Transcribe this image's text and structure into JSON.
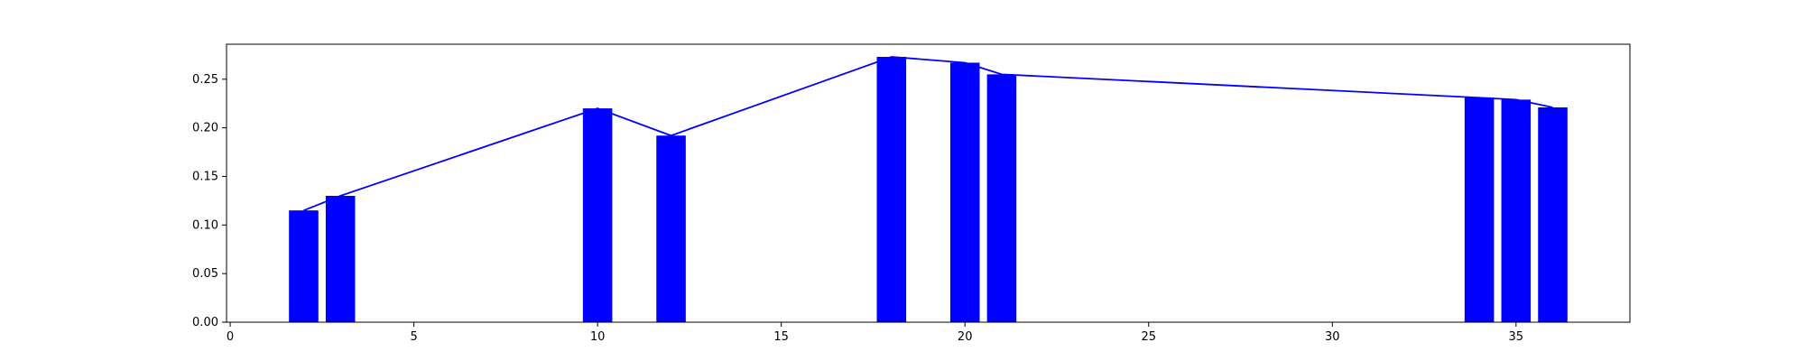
{
  "chart_data": {
    "type": "bar",
    "title": "",
    "xlabel": "",
    "ylabel": "",
    "xlim": [
      -0.1,
      38.1
    ],
    "ylim": [
      0,
      0.286
    ],
    "x_ticks": [
      0,
      5,
      10,
      15,
      20,
      25,
      30,
      35
    ],
    "y_ticks": [
      0.0,
      0.05,
      0.1,
      0.15,
      0.2,
      0.25
    ],
    "x_tick_labels": [
      "0",
      "5",
      "10",
      "15",
      "20",
      "25",
      "30",
      "35"
    ],
    "y_tick_labels": [
      "0.00",
      "0.05",
      "0.10",
      "0.15",
      "0.20",
      "0.25"
    ],
    "bar_width": 0.8,
    "grid": false,
    "bar_color": "#0000ff",
    "line_color": "#0000ff",
    "x": [
      2,
      3,
      10,
      12,
      18,
      20,
      21,
      34,
      35,
      36
    ],
    "values": [
      0.115,
      0.13,
      0.22,
      0.192,
      0.273,
      0.267,
      0.255,
      0.231,
      0.229,
      0.221
    ],
    "overlay_line": {
      "type": "line",
      "x": [
        2,
        3,
        10,
        12,
        18,
        20,
        21,
        34,
        35,
        36
      ],
      "values": [
        0.115,
        0.13,
        0.22,
        0.192,
        0.273,
        0.267,
        0.255,
        0.231,
        0.229,
        0.221
      ]
    }
  }
}
